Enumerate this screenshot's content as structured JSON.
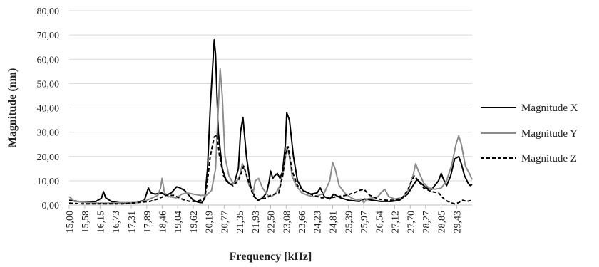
{
  "chart_data": {
    "type": "line",
    "title": "",
    "xlabel": "Frequency [kHz]",
    "ylabel": "Magnitude (nm)",
    "ylim": [
      0,
      80
    ],
    "xlim": [
      15.0,
      30.0
    ],
    "y_ticks": [
      "0,00",
      "10,00",
      "20,00",
      "30,00",
      "40,00",
      "50,00",
      "60,00",
      "70,00",
      "80,00"
    ],
    "x_ticks": [
      "15,00",
      "15,58",
      "16,15",
      "16,73",
      "17,31",
      "17,89",
      "18,46",
      "19,04",
      "19,62",
      "20,19",
      "20,77",
      "21,35",
      "21,93",
      "22,50",
      "23,08",
      "23,66",
      "24,23",
      "24,81",
      "25,39",
      "25,97",
      "26,54",
      "27,12",
      "27,70",
      "28,27",
      "28,85",
      "29,43"
    ],
    "grid": "horizontal",
    "legend_position": "right",
    "series": [
      {
        "name": "Magnitude X",
        "color": "#000000",
        "dash": "solid",
        "x": [
          15.0,
          15.5,
          16.0,
          16.2,
          16.28,
          16.36,
          16.6,
          17.0,
          17.5,
          17.8,
          17.95,
          18.05,
          18.2,
          18.45,
          18.6,
          18.8,
          19.0,
          19.1,
          19.3,
          19.5,
          19.62,
          19.8,
          19.95,
          20.05,
          20.15,
          20.25,
          20.4,
          20.45,
          20.55,
          20.7,
          20.85,
          21.0,
          21.15,
          21.3,
          21.38,
          21.47,
          21.6,
          21.75,
          21.85,
          21.93,
          22.05,
          22.2,
          22.35,
          22.45,
          22.5,
          22.58,
          22.65,
          22.75,
          22.85,
          22.95,
          23.05,
          23.1,
          23.2,
          23.35,
          23.5,
          23.7,
          24.0,
          24.23,
          24.35,
          24.5,
          24.7,
          24.85,
          25.1,
          25.4,
          25.8,
          26.0,
          26.3,
          26.6,
          27.0,
          27.3,
          27.6,
          27.8,
          27.95,
          28.1,
          28.3,
          28.5,
          28.75,
          28.85,
          28.92,
          29.05,
          29.2,
          29.35,
          29.5,
          29.6,
          29.72,
          29.85,
          29.93,
          30.0
        ],
        "y": [
          2.0,
          1.2,
          1.5,
          2.8,
          5.5,
          3.0,
          1.3,
          0.8,
          1.0,
          2.0,
          7.0,
          5.0,
          4.5,
          5.0,
          4.0,
          5.0,
          7.5,
          7.2,
          6.0,
          3.5,
          2.0,
          1.2,
          1.0,
          3.0,
          15.0,
          40.0,
          68.0,
          62.0,
          30.0,
          15.0,
          10.0,
          8.5,
          9.0,
          15.0,
          30.0,
          36.0,
          20.0,
          8.0,
          5.0,
          3.0,
          2.0,
          3.0,
          5.0,
          10.0,
          14.0,
          11.0,
          12.0,
          13.0,
          11.0,
          14.0,
          25.0,
          38.0,
          35.0,
          20.0,
          10.0,
          6.0,
          4.5,
          5.0,
          7.0,
          3.5,
          2.5,
          4.5,
          3.0,
          2.0,
          1.5,
          2.5,
          2.0,
          1.5,
          1.5,
          2.0,
          4.5,
          8.0,
          10.5,
          9.0,
          7.0,
          6.5,
          10.0,
          13.0,
          11.0,
          8.0,
          12.0,
          19.0,
          20.0,
          17.0,
          12.0,
          9.0,
          8.0,
          8.5
        ]
      },
      {
        "name": "Magnitude Y",
        "color": "#8c8c8c",
        "dash": "solid",
        "x": [
          15.0,
          15.2,
          15.5,
          16.0,
          16.5,
          17.0,
          17.5,
          17.9,
          18.1,
          18.3,
          18.4,
          18.46,
          18.55,
          18.7,
          19.0,
          19.2,
          19.4,
          19.62,
          19.9,
          20.1,
          20.3,
          20.45,
          20.55,
          20.62,
          20.7,
          20.8,
          20.95,
          21.1,
          21.25,
          21.35,
          21.45,
          21.55,
          21.7,
          21.85,
          21.93,
          22.05,
          22.2,
          22.4,
          22.5,
          22.6,
          22.7,
          22.85,
          23.0,
          23.1,
          23.2,
          23.3,
          23.45,
          23.66,
          23.9,
          24.1,
          24.3,
          24.5,
          24.7,
          24.81,
          24.9,
          25.05,
          25.3,
          25.5,
          25.7,
          25.85,
          25.97,
          26.1,
          26.3,
          26.5,
          26.6,
          26.75,
          26.9,
          27.12,
          27.4,
          27.6,
          27.8,
          27.9,
          28.0,
          28.2,
          28.4,
          28.6,
          28.85,
          29.05,
          29.25,
          29.4,
          29.5,
          29.6,
          29.75,
          29.9,
          30.0
        ],
        "y": [
          3.5,
          1.5,
          1.2,
          0.8,
          0.8,
          1.0,
          1.0,
          2.0,
          3.0,
          4.0,
          7.0,
          11.0,
          5.0,
          3.5,
          3.0,
          4.5,
          5.0,
          4.5,
          4.0,
          4.0,
          6.0,
          15.0,
          40.0,
          56.0,
          45.0,
          20.0,
          12.0,
          9.0,
          10.0,
          12.0,
          17.0,
          14.0,
          8.0,
          5.0,
          10.0,
          11.0,
          7.0,
          4.0,
          3.5,
          4.0,
          5.0,
          8.0,
          15.0,
          24.0,
          20.0,
          12.0,
          8.0,
          5.0,
          4.0,
          3.5,
          4.0,
          5.0,
          10.0,
          17.5,
          15.0,
          8.0,
          4.5,
          3.0,
          2.0,
          2.5,
          1.0,
          2.5,
          3.0,
          3.5,
          5.0,
          6.5,
          3.5,
          2.5,
          3.0,
          5.5,
          12.0,
          17.0,
          14.0,
          9.0,
          7.0,
          6.5,
          7.0,
          10.0,
          17.0,
          25.0,
          28.5,
          25.0,
          16.0,
          13.0,
          10.5
        ]
      },
      {
        "name": "Magnitude Z",
        "color": "#000000",
        "dash": "dashed",
        "x": [
          15.0,
          15.5,
          16.0,
          16.5,
          17.0,
          17.5,
          18.0,
          18.3,
          18.6,
          18.9,
          19.1,
          19.3,
          19.5,
          19.7,
          19.9,
          20.05,
          20.15,
          20.25,
          20.4,
          20.5,
          20.6,
          20.75,
          20.95,
          21.1,
          21.3,
          21.4,
          21.5,
          21.7,
          21.85,
          22.0,
          22.15,
          22.35,
          22.5,
          22.65,
          22.8,
          22.95,
          23.05,
          23.15,
          23.3,
          23.5,
          23.8,
          24.1,
          24.4,
          24.7,
          25.0,
          25.3,
          25.6,
          25.8,
          25.97,
          26.2,
          26.5,
          26.8,
          27.12,
          27.4,
          27.6,
          27.75,
          27.85,
          28.0,
          28.2,
          28.5,
          28.75,
          29.0,
          29.2,
          29.35,
          29.5,
          29.65,
          29.8,
          30.0
        ],
        "y": [
          0.8,
          0.5,
          0.5,
          0.5,
          0.5,
          1.0,
          1.5,
          2.5,
          4.0,
          4.0,
          3.0,
          2.0,
          1.5,
          1.5,
          2.0,
          3.0,
          10.0,
          20.0,
          28.0,
          29.0,
          20.0,
          12.0,
          9.0,
          8.0,
          10.0,
          13.0,
          16.0,
          9.0,
          4.0,
          2.0,
          2.5,
          3.0,
          4.0,
          4.5,
          5.0,
          12.0,
          21.0,
          24.0,
          14.0,
          8.0,
          5.5,
          4.0,
          3.0,
          3.0,
          3.5,
          4.0,
          5.0,
          6.0,
          6.5,
          4.0,
          2.5,
          2.0,
          2.0,
          3.0,
          6.0,
          10.0,
          12.0,
          10.0,
          7.0,
          5.5,
          5.0,
          2.0,
          1.0,
          0.5,
          1.0,
          2.0,
          1.5,
          2.0
        ]
      }
    ]
  }
}
